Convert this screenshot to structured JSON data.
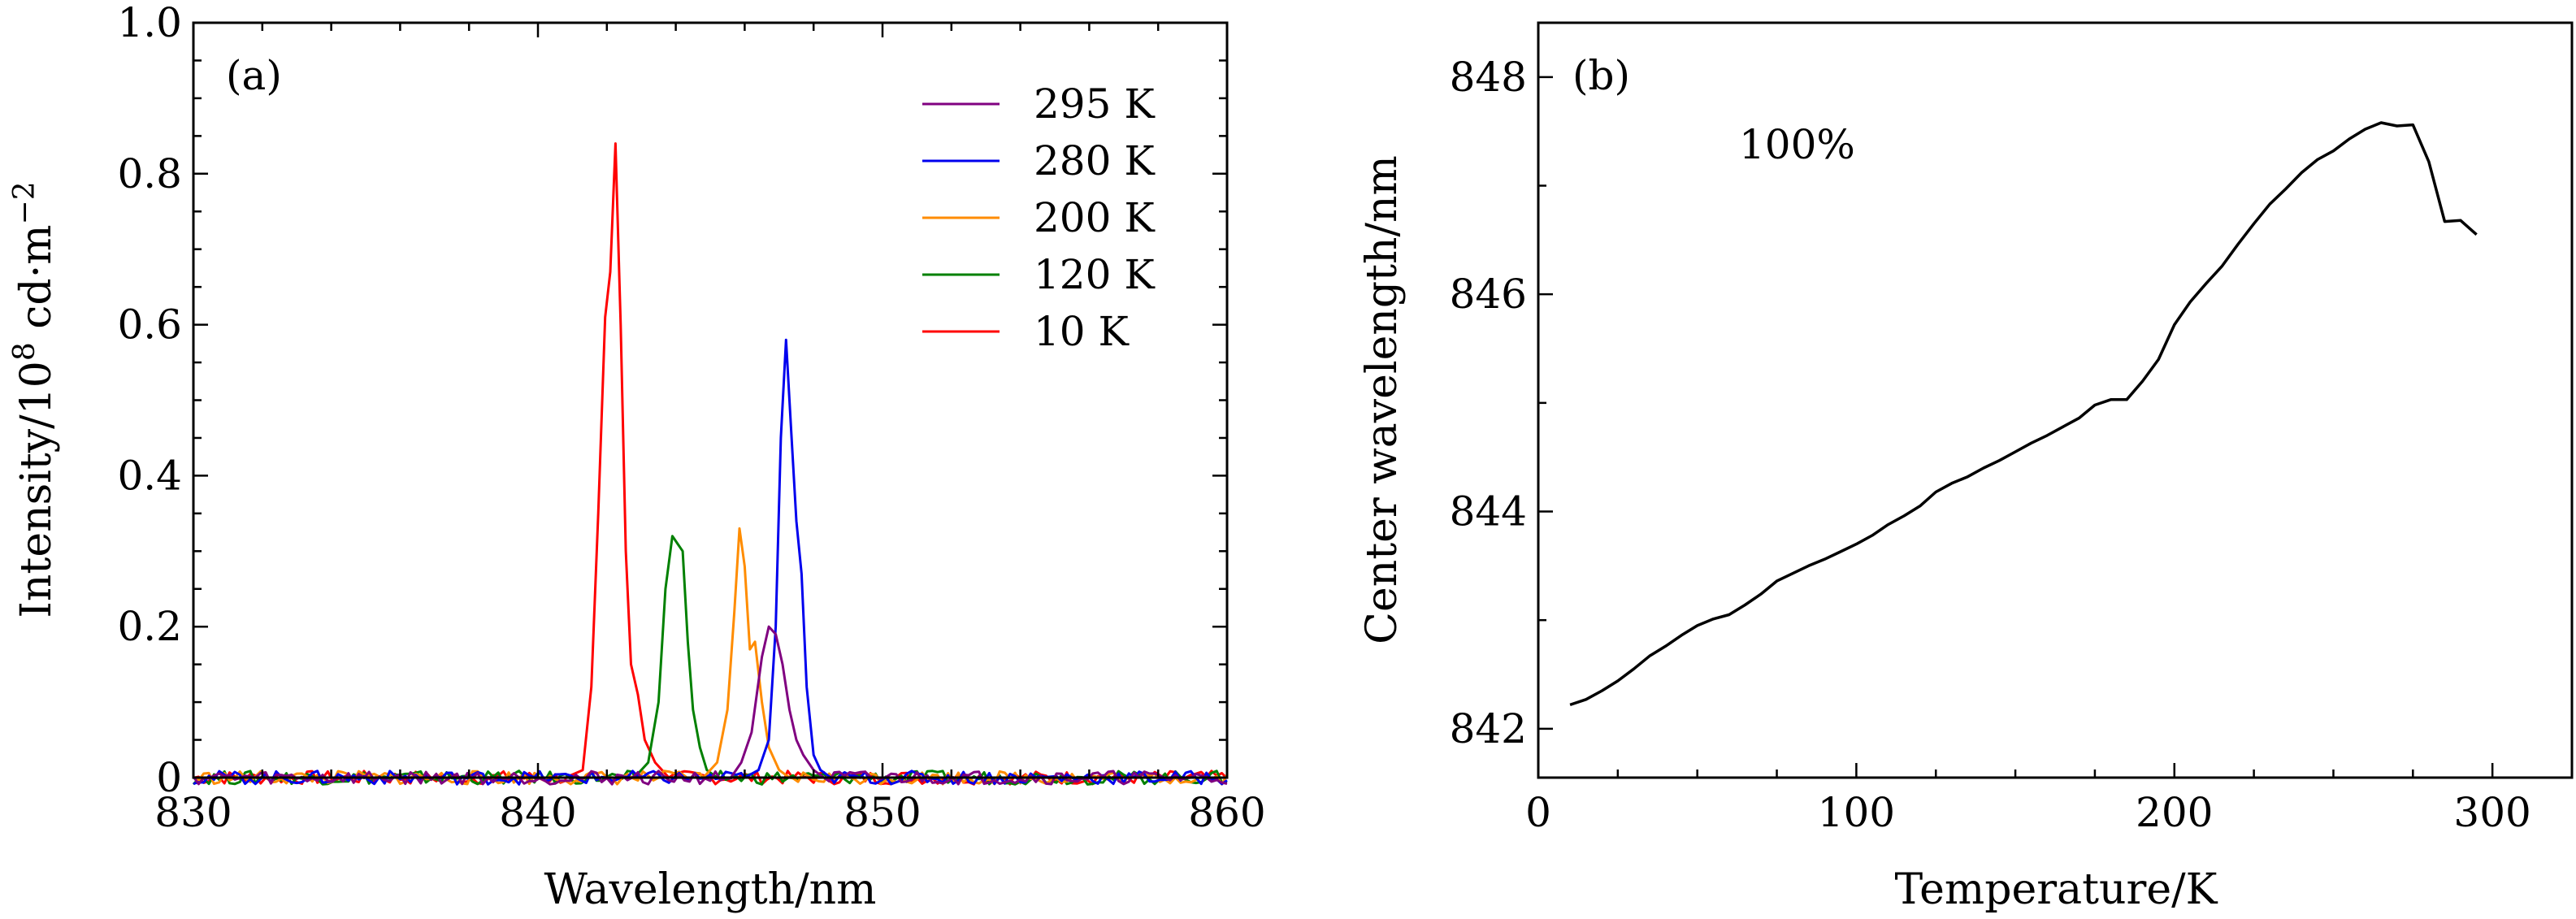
{
  "chart_data": [
    {
      "type": "line",
      "panel_label": "(a)",
      "xlabel": "Wavelength/nm",
      "ylabel": {
        "main": "Intensity/10",
        "sup1": "8",
        "mid": " cd·m",
        "sup2": "−2"
      },
      "xlim": [
        830,
        860
      ],
      "ylim": [
        0,
        1.0
      ],
      "xticks": [
        830,
        840,
        850,
        860
      ],
      "yticks": [
        0,
        0.2,
        0.4,
        0.6,
        0.8,
        1.0
      ],
      "ytick_labels": [
        "0",
        "0.2",
        "0.4",
        "0.6",
        "0.8",
        "1.0"
      ],
      "legend_position": "top-right",
      "series": [
        {
          "name": "295 K",
          "color": "#800080",
          "x": [
            845.6,
            845.9,
            846.2,
            846.5,
            846.7,
            846.9,
            847.1,
            847.3,
            847.5,
            847.7,
            848.0,
            848.3
          ],
          "y": [
            0.0,
            0.02,
            0.06,
            0.16,
            0.2,
            0.19,
            0.15,
            0.09,
            0.05,
            0.03,
            0.01,
            0.0
          ]
        },
        {
          "name": "280 K",
          "color": "#0000ee",
          "x": [
            846.0,
            846.4,
            846.7,
            846.9,
            847.05,
            847.2,
            847.35,
            847.5,
            847.65,
            847.8,
            848.0,
            848.2,
            848.5
          ],
          "y": [
            0.0,
            0.01,
            0.05,
            0.2,
            0.45,
            0.58,
            0.46,
            0.34,
            0.27,
            0.12,
            0.03,
            0.01,
            0.0
          ]
        },
        {
          "name": "200 K",
          "color": "#ff8c00",
          "x": [
            844.8,
            845.2,
            845.5,
            845.7,
            845.85,
            846.0,
            846.15,
            846.3,
            846.5,
            846.7,
            847.0,
            847.3
          ],
          "y": [
            0.0,
            0.02,
            0.09,
            0.22,
            0.33,
            0.28,
            0.17,
            0.18,
            0.1,
            0.04,
            0.01,
            0.0
          ]
        },
        {
          "name": "120 K",
          "color": "#008000",
          "x": [
            842.8,
            843.2,
            843.5,
            843.7,
            843.9,
            844.05,
            844.2,
            844.35,
            844.5,
            844.7,
            844.9,
            845.2
          ],
          "y": [
            0.0,
            0.02,
            0.1,
            0.25,
            0.32,
            0.31,
            0.3,
            0.18,
            0.09,
            0.04,
            0.01,
            0.0
          ]
        },
        {
          "name": "10 K",
          "color": "#ff0000",
          "x": [
            840.8,
            841.3,
            841.55,
            841.75,
            841.95,
            842.1,
            842.25,
            842.4,
            842.55,
            842.7,
            842.9,
            843.1,
            843.4,
            843.8
          ],
          "y": [
            0.0,
            0.01,
            0.12,
            0.35,
            0.61,
            0.67,
            0.84,
            0.6,
            0.3,
            0.15,
            0.11,
            0.05,
            0.02,
            0.0
          ]
        }
      ]
    },
    {
      "type": "line",
      "panel_label": "(b)",
      "annotation": "100%",
      "xlabel": "Temperature/K",
      "ylabel": "Center wavelength/nm",
      "xlim": [
        0,
        325
      ],
      "ylim": [
        841.55,
        848.5
      ],
      "xticks": [
        0,
        100,
        200,
        300
      ],
      "yticks": [
        842,
        844,
        846,
        848
      ],
      "series": [
        {
          "color": "#000000",
          "x": [
            10,
            15,
            20,
            25,
            30,
            35,
            40,
            45,
            50,
            55,
            60,
            65,
            70,
            75,
            80,
            85,
            90,
            95,
            100,
            105,
            110,
            115,
            120,
            125,
            130,
            135,
            140,
            145,
            150,
            155,
            160,
            165,
            170,
            175,
            180,
            185,
            190,
            195,
            200,
            205,
            210,
            215,
            220,
            225,
            230,
            235,
            240,
            245,
            250,
            255,
            260,
            265,
            270,
            275,
            280,
            285,
            290,
            295
          ],
          "y": [
            842.22,
            842.27,
            842.35,
            842.44,
            842.55,
            842.67,
            842.76,
            842.86,
            842.95,
            843.01,
            843.05,
            843.14,
            843.24,
            843.36,
            843.43,
            843.5,
            843.56,
            843.63,
            843.7,
            843.78,
            843.88,
            843.96,
            844.05,
            844.18,
            844.26,
            844.32,
            844.4,
            844.47,
            844.55,
            844.63,
            844.7,
            844.78,
            844.86,
            844.98,
            845.03,
            845.03,
            845.2,
            845.4,
            845.72,
            845.93,
            846.1,
            846.26,
            846.46,
            846.65,
            846.83,
            846.97,
            847.12,
            847.24,
            847.32,
            847.43,
            847.52,
            847.58,
            847.55,
            847.56,
            847.22,
            846.67,
            846.68,
            846.55
          ]
        }
      ]
    }
  ]
}
